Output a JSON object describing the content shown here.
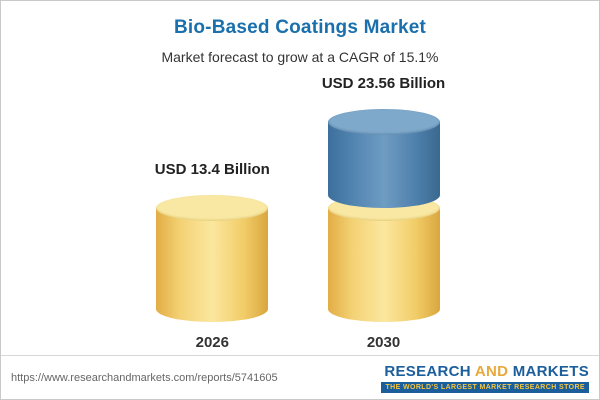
{
  "header": {
    "title": "Bio-Based Coatings Market",
    "subtitle": "Market forecast to grow at a CAGR of 15.1%"
  },
  "chart_data": {
    "type": "bar",
    "title": "Bio-Based Coatings Market",
    "subtitle": "Market forecast to grow at a CAGR of 15.1%",
    "cagr_pct": 15.1,
    "unit": "USD Billion",
    "categories": [
      "2026",
      "2030"
    ],
    "values": [
      13.4,
      23.56
    ],
    "value_labels": [
      "USD 13.4 Billion",
      "USD 23.56 Billion"
    ],
    "ylim": [
      0,
      24
    ],
    "legend": "none",
    "grid": false,
    "stacking_note": "2030 cylinder is stacked: yellow base equal to 2026 value, blue top segment equals growth increment of 10.16"
  },
  "footer": {
    "url": "https://www.researchandmarkets.com/reports/5741605",
    "logo": {
      "word1": "RESEARCH",
      "word2": "AND",
      "word3": "MARKETS",
      "tagline": "THE WORLD'S LARGEST MARKET RESEARCH STORE"
    }
  },
  "colors": {
    "title-blue": "#1a6fad",
    "bar-yellow": "#f3cf6b",
    "bar-yellow-cap": "#f9e8a3",
    "bar-blue": "#4d80ae",
    "bar-blue-cap": "#7fa9cb",
    "logo-blue": "#1b5e9c",
    "logo-orange": "#e9a83c",
    "tagline-yellow": "#f5c63f",
    "text-dark": "#222222",
    "url-gray": "#666666"
  }
}
